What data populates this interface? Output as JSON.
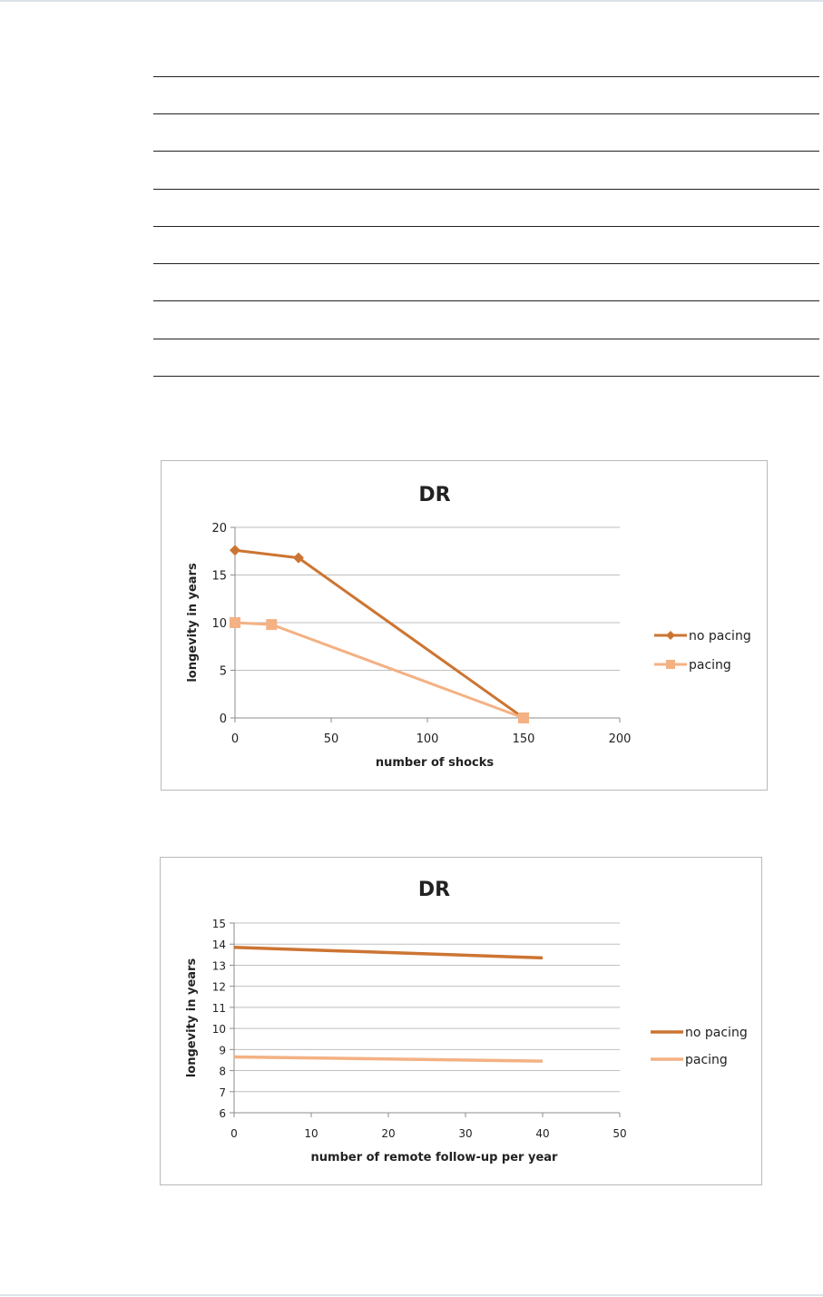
{
  "colors": {
    "no_pacing": "#CC7532",
    "pacing": "#F4B183",
    "grid": "#BFBFBF",
    "axis": "#8C8C8C",
    "text": "#222222"
  },
  "chart_data": [
    {
      "type": "line",
      "title": "DR",
      "xlabel": "number of shocks",
      "ylabel": "longevity in years",
      "xlim": [
        0,
        200
      ],
      "ylim": [
        0,
        20
      ],
      "xticks": [
        0,
        50,
        100,
        150,
        200
      ],
      "yticks": [
        0,
        5,
        10,
        15,
        20
      ],
      "grid": true,
      "legend_position": "right",
      "series": [
        {
          "name": "no pacing",
          "marker": "diamond",
          "x": [
            0,
            33,
            150
          ],
          "y": [
            17.6,
            16.8,
            0
          ]
        },
        {
          "name": "pacing",
          "marker": "square",
          "x": [
            0,
            19,
            150
          ],
          "y": [
            10,
            9.8,
            0
          ]
        }
      ]
    },
    {
      "type": "line",
      "title": "DR",
      "xlabel": "number of remote follow-up per year",
      "ylabel": "longevity in years",
      "xlim": [
        0,
        50
      ],
      "ylim": [
        6,
        15
      ],
      "xticks": [
        0,
        10,
        20,
        30,
        40,
        50
      ],
      "yticks": [
        6,
        7,
        8,
        9,
        10,
        11,
        12,
        13,
        14,
        15
      ],
      "grid": true,
      "legend_position": "right",
      "series": [
        {
          "name": "no pacing",
          "marker": "none",
          "x": [
            0,
            40
          ],
          "y": [
            13.85,
            13.35
          ]
        },
        {
          "name": "pacing",
          "marker": "none",
          "x": [
            0,
            40
          ],
          "y": [
            8.65,
            8.45
          ]
        }
      ]
    }
  ]
}
